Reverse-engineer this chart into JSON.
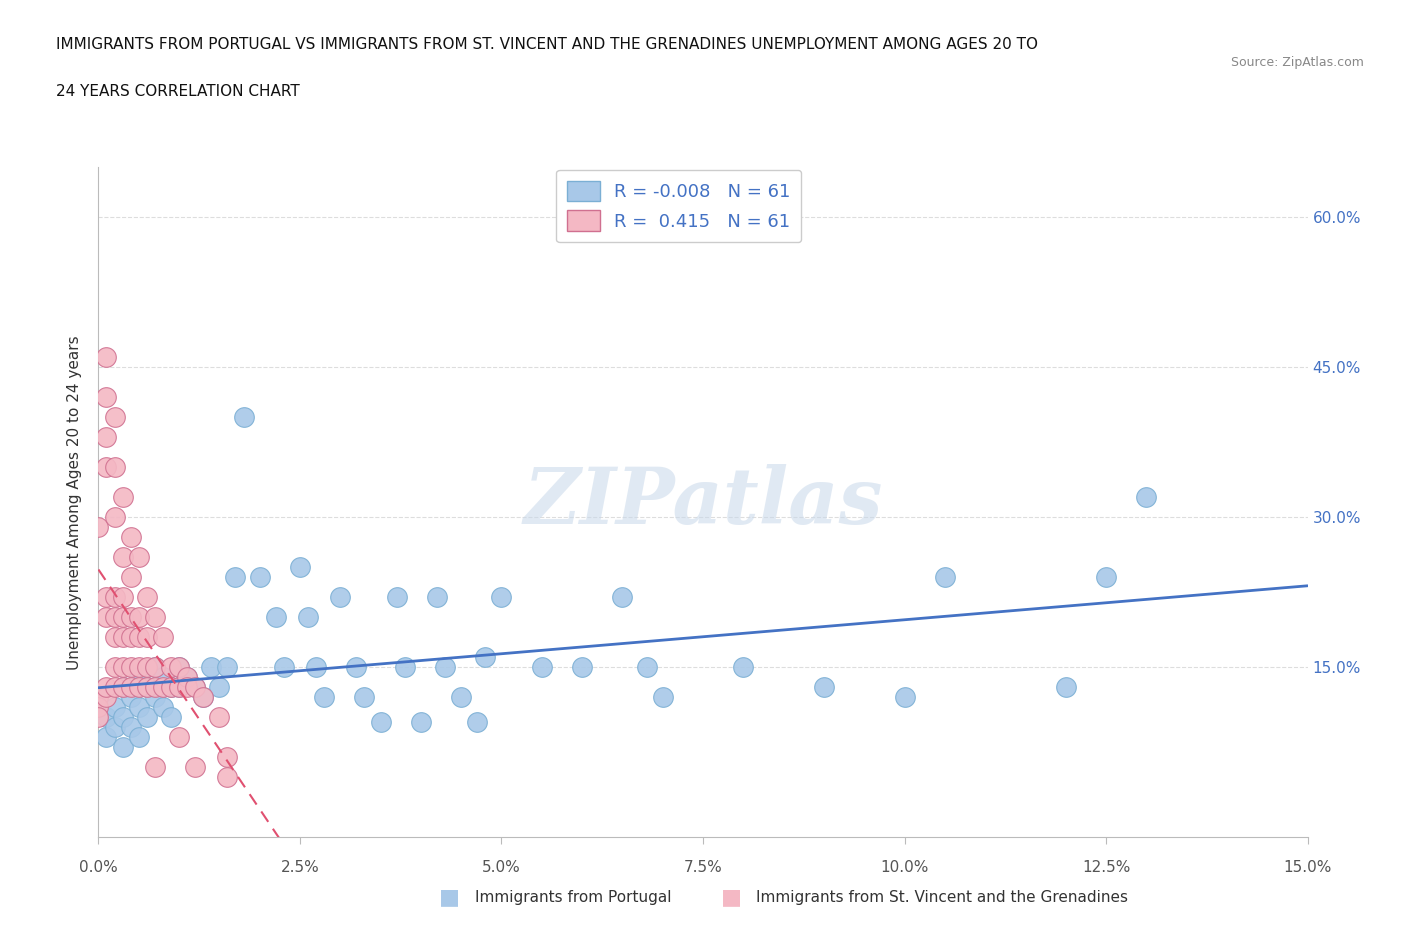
{
  "title_line1": "IMMIGRANTS FROM PORTUGAL VS IMMIGRANTS FROM ST. VINCENT AND THE GRENADINES UNEMPLOYMENT AMONG AGES 20 TO",
  "title_line2": "24 YEARS CORRELATION CHART",
  "source": "Source: ZipAtlas.com",
  "ylabel": "Unemployment Among Ages 20 to 24 years",
  "xlim": [
    0.0,
    0.15
  ],
  "ylim": [
    -0.02,
    0.65
  ],
  "yticks": [
    0.0,
    0.15,
    0.3,
    0.45,
    0.6
  ],
  "yticklabels_right": [
    "",
    "15.0%",
    "30.0%",
    "45.0%",
    "60.0%"
  ],
  "color_portugal": "#a8c8e8",
  "color_stvincent": "#f4b8c4",
  "color_portugal_line": "#4472C4",
  "color_stvincent_line": "#e05070",
  "watermark": "ZIPatlas",
  "portugal_scatter": [
    [
      0.0,
      0.12
    ],
    [
      0.001,
      0.1
    ],
    [
      0.001,
      0.08
    ],
    [
      0.002,
      0.11
    ],
    [
      0.002,
      0.09
    ],
    [
      0.003,
      0.13
    ],
    [
      0.003,
      0.1
    ],
    [
      0.003,
      0.07
    ],
    [
      0.004,
      0.12
    ],
    [
      0.004,
      0.09
    ],
    [
      0.005,
      0.14
    ],
    [
      0.005,
      0.11
    ],
    [
      0.005,
      0.08
    ],
    [
      0.006,
      0.13
    ],
    [
      0.006,
      0.1
    ],
    [
      0.007,
      0.15
    ],
    [
      0.007,
      0.12
    ],
    [
      0.008,
      0.14
    ],
    [
      0.008,
      0.11
    ],
    [
      0.009,
      0.13
    ],
    [
      0.009,
      0.1
    ],
    [
      0.01,
      0.15
    ],
    [
      0.01,
      0.13
    ],
    [
      0.011,
      0.14
    ],
    [
      0.012,
      0.13
    ],
    [
      0.013,
      0.12
    ],
    [
      0.014,
      0.15
    ],
    [
      0.015,
      0.13
    ],
    [
      0.016,
      0.15
    ],
    [
      0.017,
      0.24
    ],
    [
      0.018,
      0.4
    ],
    [
      0.02,
      0.24
    ],
    [
      0.022,
      0.2
    ],
    [
      0.023,
      0.15
    ],
    [
      0.025,
      0.25
    ],
    [
      0.026,
      0.2
    ],
    [
      0.027,
      0.15
    ],
    [
      0.028,
      0.12
    ],
    [
      0.03,
      0.22
    ],
    [
      0.032,
      0.15
    ],
    [
      0.033,
      0.12
    ],
    [
      0.035,
      0.095
    ],
    [
      0.037,
      0.22
    ],
    [
      0.038,
      0.15
    ],
    [
      0.04,
      0.095
    ],
    [
      0.042,
      0.22
    ],
    [
      0.043,
      0.15
    ],
    [
      0.045,
      0.12
    ],
    [
      0.047,
      0.095
    ],
    [
      0.048,
      0.16
    ],
    [
      0.05,
      0.22
    ],
    [
      0.055,
      0.15
    ],
    [
      0.06,
      0.15
    ],
    [
      0.065,
      0.22
    ],
    [
      0.068,
      0.15
    ],
    [
      0.07,
      0.12
    ],
    [
      0.08,
      0.15
    ],
    [
      0.09,
      0.13
    ],
    [
      0.1,
      0.12
    ],
    [
      0.105,
      0.24
    ],
    [
      0.12,
      0.13
    ],
    [
      0.125,
      0.24
    ],
    [
      0.13,
      0.32
    ]
  ],
  "stvincent_scatter": [
    [
      0.0,
      0.12
    ],
    [
      0.0,
      0.11
    ],
    [
      0.0,
      0.1
    ],
    [
      0.0,
      0.29
    ],
    [
      0.001,
      0.46
    ],
    [
      0.001,
      0.38
    ],
    [
      0.001,
      0.42
    ],
    [
      0.001,
      0.35
    ],
    [
      0.001,
      0.12
    ],
    [
      0.001,
      0.13
    ],
    [
      0.001,
      0.2
    ],
    [
      0.001,
      0.22
    ],
    [
      0.002,
      0.4
    ],
    [
      0.002,
      0.35
    ],
    [
      0.002,
      0.3
    ],
    [
      0.002,
      0.22
    ],
    [
      0.002,
      0.2
    ],
    [
      0.002,
      0.18
    ],
    [
      0.002,
      0.15
    ],
    [
      0.002,
      0.13
    ],
    [
      0.003,
      0.32
    ],
    [
      0.003,
      0.26
    ],
    [
      0.003,
      0.22
    ],
    [
      0.003,
      0.2
    ],
    [
      0.003,
      0.18
    ],
    [
      0.003,
      0.15
    ],
    [
      0.003,
      0.13
    ],
    [
      0.004,
      0.28
    ],
    [
      0.004,
      0.24
    ],
    [
      0.004,
      0.2
    ],
    [
      0.004,
      0.18
    ],
    [
      0.004,
      0.15
    ],
    [
      0.004,
      0.13
    ],
    [
      0.005,
      0.26
    ],
    [
      0.005,
      0.2
    ],
    [
      0.005,
      0.18
    ],
    [
      0.005,
      0.15
    ],
    [
      0.005,
      0.13
    ],
    [
      0.006,
      0.22
    ],
    [
      0.006,
      0.18
    ],
    [
      0.006,
      0.15
    ],
    [
      0.006,
      0.13
    ],
    [
      0.007,
      0.2
    ],
    [
      0.007,
      0.15
    ],
    [
      0.007,
      0.13
    ],
    [
      0.007,
      0.05
    ],
    [
      0.008,
      0.18
    ],
    [
      0.008,
      0.13
    ],
    [
      0.009,
      0.15
    ],
    [
      0.009,
      0.13
    ],
    [
      0.01,
      0.15
    ],
    [
      0.01,
      0.13
    ],
    [
      0.01,
      0.08
    ],
    [
      0.011,
      0.14
    ],
    [
      0.011,
      0.13
    ],
    [
      0.012,
      0.13
    ],
    [
      0.012,
      0.05
    ],
    [
      0.013,
      0.12
    ],
    [
      0.015,
      0.1
    ],
    [
      0.016,
      0.06
    ],
    [
      0.016,
      0.04
    ]
  ]
}
